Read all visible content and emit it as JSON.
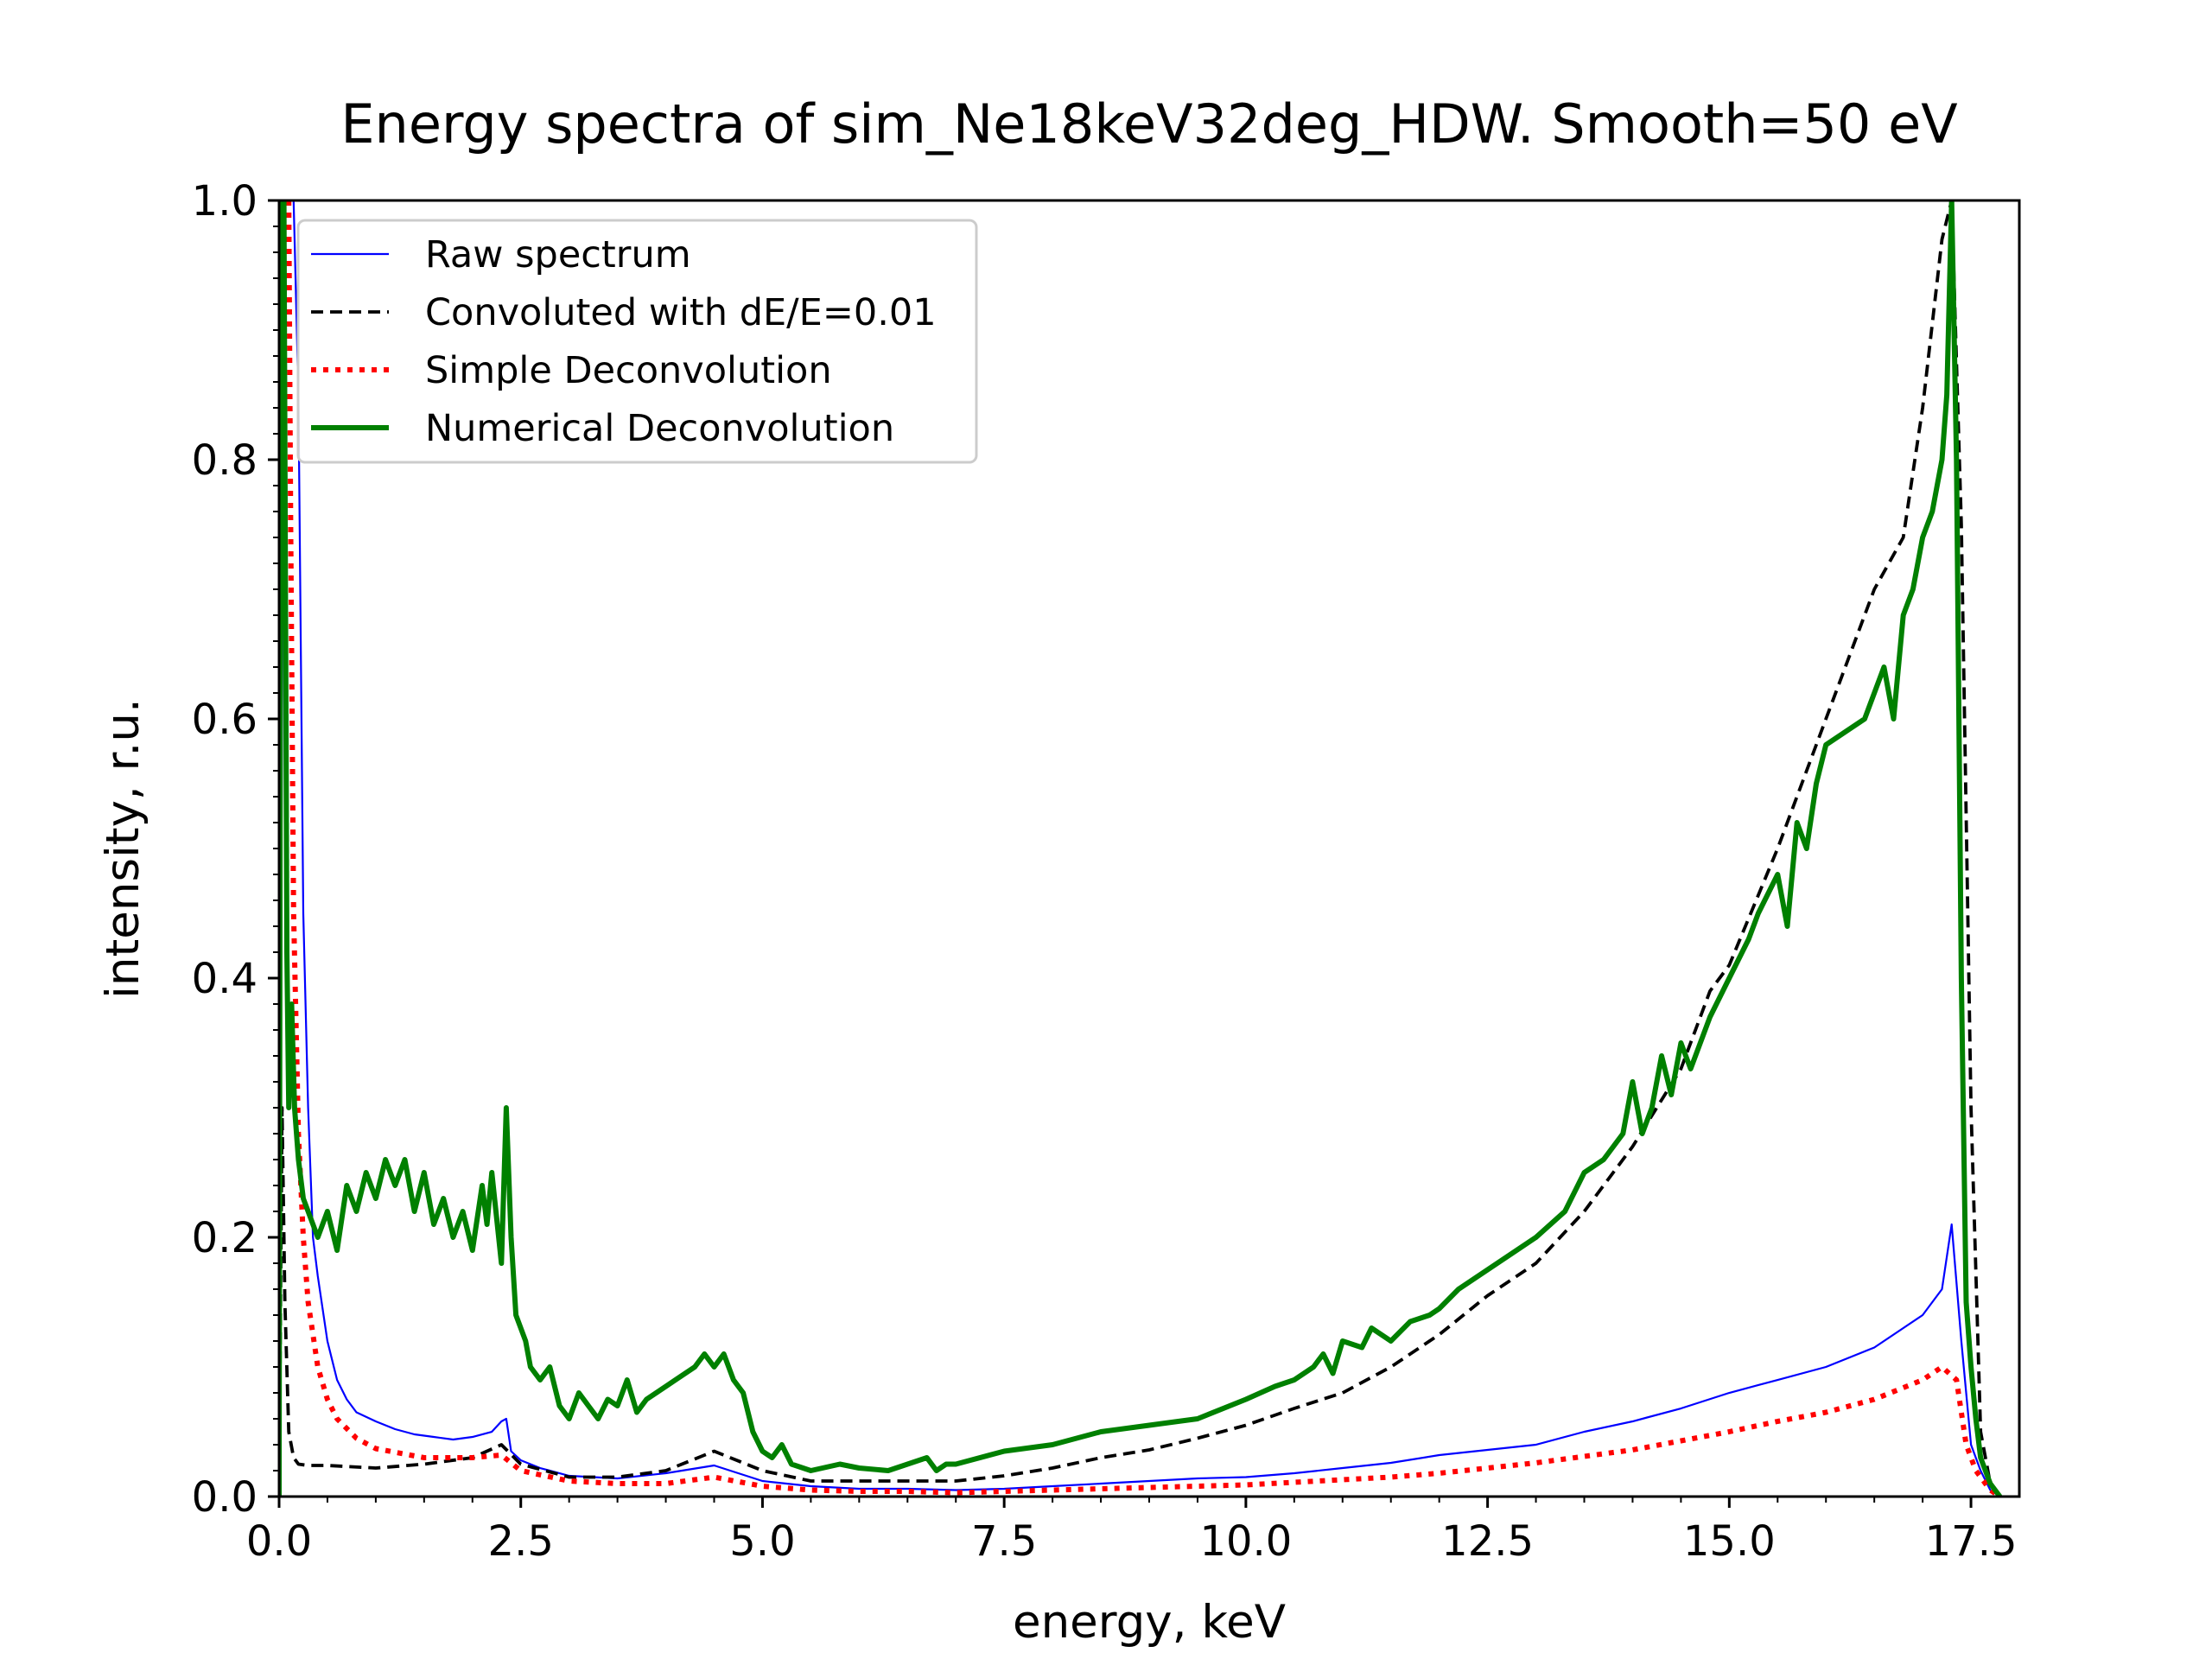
{
  "chart_data": {
    "type": "line",
    "title": "Energy spectra of sim_Ne18keV32deg_HDW. Smooth=50 eV",
    "xlabel": "energy, keV",
    "ylabel": "intensity, r.u.",
    "xlim": [
      0,
      18
    ],
    "ylim": [
      0,
      1.0
    ],
    "xticks": [
      0.0,
      2.5,
      5.0,
      7.5,
      10.0,
      12.5,
      15.0,
      17.5
    ],
    "xtick_labels": [
      "0.0",
      "2.5",
      "5.0",
      "7.5",
      "10.0",
      "12.5",
      "15.0",
      "17.5"
    ],
    "yticks": [
      0.0,
      0.2,
      0.4,
      0.6,
      0.8,
      1.0
    ],
    "ytick_labels": [
      "0.0",
      "0.2",
      "0.4",
      "0.6",
      "0.8",
      "1.0"
    ],
    "grid": false,
    "legend_position": "upper-left",
    "series": [
      {
        "name": "Raw spectrum",
        "color": "#0000ff",
        "style": "solid",
        "width": "thin",
        "x": [
          0.0,
          0.05,
          0.1,
          0.15,
          0.2,
          0.25,
          0.3,
          0.35,
          0.4,
          0.5,
          0.6,
          0.7,
          0.8,
          1.0,
          1.2,
          1.4,
          1.6,
          1.8,
          2.0,
          2.2,
          2.3,
          2.35,
          2.4,
          2.5,
          2.7,
          3.0,
          3.5,
          4.0,
          4.5,
          5.0,
          5.5,
          6.0,
          6.5,
          7.0,
          7.5,
          8.0,
          8.5,
          9.0,
          9.5,
          10.0,
          10.5,
          11.0,
          11.5,
          12.0,
          12.5,
          13.0,
          13.5,
          14.0,
          14.5,
          15.0,
          15.5,
          16.0,
          16.5,
          17.0,
          17.2,
          17.3,
          17.4,
          17.5,
          17.6,
          17.7,
          17.8
        ],
        "y": [
          0.0,
          1.0,
          1.0,
          1.0,
          0.85,
          0.45,
          0.3,
          0.2,
          0.17,
          0.12,
          0.09,
          0.075,
          0.065,
          0.058,
          0.052,
          0.048,
          0.046,
          0.044,
          0.046,
          0.05,
          0.058,
          0.06,
          0.035,
          0.028,
          0.022,
          0.016,
          0.014,
          0.018,
          0.024,
          0.012,
          0.008,
          0.006,
          0.006,
          0.005,
          0.006,
          0.008,
          0.01,
          0.012,
          0.014,
          0.015,
          0.018,
          0.022,
          0.026,
          0.032,
          0.036,
          0.04,
          0.05,
          0.058,
          0.068,
          0.08,
          0.09,
          0.1,
          0.115,
          0.14,
          0.16,
          0.21,
          0.12,
          0.04,
          0.02,
          0.005,
          0.0
        ]
      },
      {
        "name": "Convoluted with dE/E=0.01",
        "color": "#000000",
        "style": "dashed",
        "width": "medium",
        "x": [
          0.0,
          0.03,
          0.06,
          0.1,
          0.15,
          0.2,
          0.3,
          0.5,
          1.0,
          1.5,
          2.0,
          2.3,
          2.5,
          3.0,
          3.5,
          4.0,
          4.5,
          5.0,
          5.5,
          6.0,
          6.5,
          7.0,
          7.5,
          8.0,
          8.5,
          9.0,
          9.5,
          10.0,
          10.5,
          11.0,
          11.5,
          12.0,
          12.5,
          13.0,
          13.5,
          14.0,
          14.5,
          14.8,
          15.0,
          15.5,
          16.0,
          16.5,
          16.8,
          17.0,
          17.2,
          17.3,
          17.4,
          17.5,
          17.6,
          17.7,
          17.8
        ],
        "y": [
          0.0,
          0.3,
          0.15,
          0.05,
          0.03,
          0.025,
          0.024,
          0.024,
          0.022,
          0.025,
          0.03,
          0.04,
          0.025,
          0.015,
          0.015,
          0.02,
          0.035,
          0.02,
          0.012,
          0.012,
          0.012,
          0.012,
          0.016,
          0.022,
          0.03,
          0.036,
          0.045,
          0.055,
          0.068,
          0.08,
          0.1,
          0.125,
          0.155,
          0.18,
          0.22,
          0.27,
          0.33,
          0.39,
          0.41,
          0.5,
          0.6,
          0.7,
          0.74,
          0.84,
          0.97,
          1.0,
          0.75,
          0.3,
          0.05,
          0.01,
          0.0
        ]
      },
      {
        "name": "Simple Deconvolution",
        "color": "#ff0000",
        "style": "dotted",
        "width": "thick",
        "x": [
          0.1,
          0.12,
          0.15,
          0.2,
          0.25,
          0.3,
          0.4,
          0.5,
          0.6,
          0.8,
          1.0,
          1.5,
          2.0,
          2.3,
          2.5,
          3.0,
          3.5,
          4.0,
          4.5,
          5.0,
          5.5,
          6.0,
          6.5,
          7.0,
          7.5,
          8.0,
          8.5,
          9.0,
          9.5,
          10.0,
          10.5,
          11.0,
          11.5,
          12.0,
          12.5,
          13.0,
          13.5,
          14.0,
          14.5,
          15.0,
          15.5,
          16.0,
          16.5,
          17.0,
          17.2,
          17.35,
          17.45,
          17.55,
          17.7,
          17.8
        ],
        "y": [
          1.0,
          0.75,
          0.45,
          0.28,
          0.2,
          0.15,
          0.1,
          0.075,
          0.06,
          0.045,
          0.037,
          0.03,
          0.03,
          0.032,
          0.02,
          0.012,
          0.01,
          0.01,
          0.015,
          0.008,
          0.005,
          0.004,
          0.004,
          0.003,
          0.004,
          0.005,
          0.006,
          0.007,
          0.008,
          0.009,
          0.011,
          0.013,
          0.015,
          0.018,
          0.022,
          0.026,
          0.031,
          0.036,
          0.043,
          0.05,
          0.058,
          0.065,
          0.075,
          0.09,
          0.1,
          0.09,
          0.04,
          0.02,
          0.005,
          0.0
        ]
      },
      {
        "name": "Numerical Deconvolution",
        "color": "#008000",
        "style": "solid",
        "width": "thick",
        "x": [
          0.0,
          0.02,
          0.05,
          0.08,
          0.1,
          0.13,
          0.16,
          0.2,
          0.25,
          0.3,
          0.4,
          0.5,
          0.6,
          0.7,
          0.8,
          0.9,
          1.0,
          1.1,
          1.2,
          1.3,
          1.4,
          1.5,
          1.6,
          1.7,
          1.8,
          1.9,
          2.0,
          2.1,
          2.15,
          2.2,
          2.3,
          2.35,
          2.4,
          2.45,
          2.5,
          2.55,
          2.6,
          2.7,
          2.8,
          2.9,
          3.0,
          3.1,
          3.2,
          3.3,
          3.4,
          3.5,
          3.6,
          3.7,
          3.8,
          3.9,
          4.0,
          4.1,
          4.2,
          4.3,
          4.4,
          4.5,
          4.6,
          4.7,
          4.8,
          4.9,
          5.0,
          5.1,
          5.2,
          5.3,
          5.5,
          5.8,
          6.0,
          6.3,
          6.5,
          6.7,
          6.8,
          6.9,
          7.0,
          7.5,
          8.0,
          8.5,
          9.0,
          9.5,
          10.0,
          10.3,
          10.5,
          10.7,
          10.8,
          10.9,
          11.0,
          11.2,
          11.3,
          11.5,
          11.7,
          11.9,
          12.0,
          12.2,
          12.5,
          12.8,
          13.0,
          13.3,
          13.5,
          13.7,
          13.8,
          13.9,
          14.0,
          14.1,
          14.2,
          14.3,
          14.4,
          14.5,
          14.6,
          14.8,
          15.0,
          15.2,
          15.3,
          15.5,
          15.6,
          15.7,
          15.8,
          15.9,
          16.0,
          16.2,
          16.4,
          16.5,
          16.6,
          16.7,
          16.8,
          16.9,
          17.0,
          17.1,
          17.2,
          17.25,
          17.3,
          17.35,
          17.4,
          17.45,
          17.5,
          17.55,
          17.6,
          17.7,
          17.8
        ],
        "y": [
          0.0,
          1.0,
          1.0,
          0.42,
          0.3,
          0.38,
          0.3,
          0.26,
          0.23,
          0.22,
          0.2,
          0.22,
          0.19,
          0.24,
          0.22,
          0.25,
          0.23,
          0.26,
          0.24,
          0.26,
          0.22,
          0.25,
          0.21,
          0.23,
          0.2,
          0.22,
          0.19,
          0.24,
          0.21,
          0.25,
          0.18,
          0.3,
          0.2,
          0.14,
          0.13,
          0.12,
          0.1,
          0.09,
          0.1,
          0.07,
          0.06,
          0.08,
          0.07,
          0.06,
          0.075,
          0.07,
          0.09,
          0.065,
          0.075,
          0.08,
          0.085,
          0.09,
          0.095,
          0.1,
          0.11,
          0.1,
          0.11,
          0.09,
          0.08,
          0.05,
          0.035,
          0.03,
          0.04,
          0.025,
          0.02,
          0.025,
          0.022,
          0.02,
          0.025,
          0.03,
          0.02,
          0.025,
          0.025,
          0.035,
          0.04,
          0.05,
          0.055,
          0.06,
          0.075,
          0.085,
          0.09,
          0.1,
          0.11,
          0.095,
          0.12,
          0.115,
          0.13,
          0.12,
          0.135,
          0.14,
          0.145,
          0.16,
          0.175,
          0.19,
          0.2,
          0.22,
          0.25,
          0.26,
          0.27,
          0.28,
          0.32,
          0.28,
          0.3,
          0.34,
          0.31,
          0.35,
          0.33,
          0.37,
          0.4,
          0.43,
          0.45,
          0.48,
          0.44,
          0.52,
          0.5,
          0.55,
          0.58,
          0.59,
          0.6,
          0.62,
          0.64,
          0.6,
          0.68,
          0.7,
          0.74,
          0.76,
          0.8,
          0.85,
          1.0,
          0.8,
          0.4,
          0.15,
          0.1,
          0.06,
          0.03,
          0.01,
          0.0
        ]
      }
    ]
  }
}
